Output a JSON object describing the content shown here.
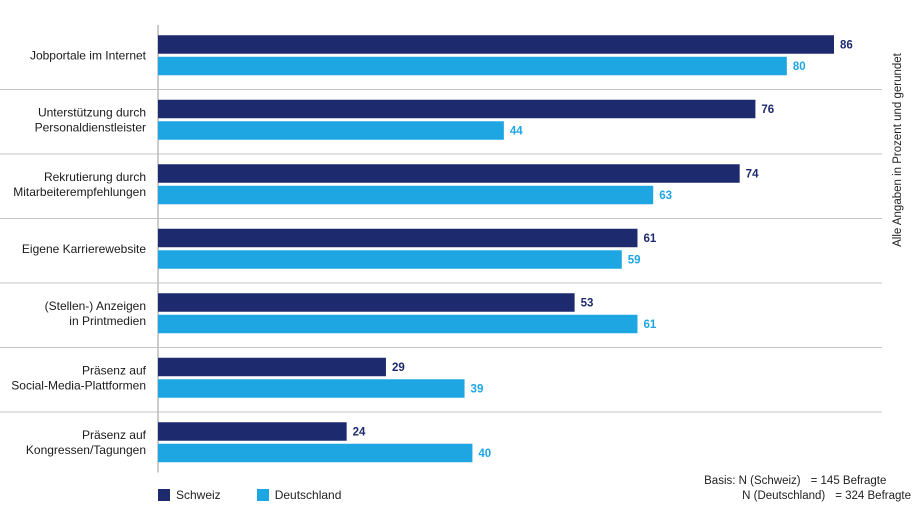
{
  "side_note": "Alle Angaben in Prozent und gerundet",
  "legend": [
    {
      "label": "Schweiz",
      "color": "#1e2a6e"
    },
    {
      "label": "Deutschland",
      "color": "#1ea6e2"
    }
  ],
  "basis": {
    "line1_prefix": "Basis: N (Schweiz)",
    "line1_value": "= 145 Befragte",
    "line2_prefix": "N (Deutschland)",
    "line2_value": "= 324 Befragte"
  },
  "chart_data": {
    "type": "bar",
    "orientation": "horizontal",
    "categories": [
      [
        "Jobportale im Internet"
      ],
      [
        "Unterstützung durch",
        "Personaldienstleister"
      ],
      [
        "Rekrutierung durch",
        "Mitarbeiterempfehlungen"
      ],
      [
        "Eigene Karrierewebsite"
      ],
      [
        "(Stellen-) Anzeigen",
        "in Printmedien"
      ],
      [
        "Präsenz auf",
        "Social-Media-Plattformen"
      ],
      [
        "Präsenz auf",
        "Kongressen/Tagungen"
      ]
    ],
    "series": [
      {
        "name": "Schweiz",
        "color": "#1e2a6e",
        "values": [
          86,
          76,
          74,
          61,
          53,
          29,
          24
        ]
      },
      {
        "name": "Deutschland",
        "color": "#1ea6e2",
        "values": [
          80,
          44,
          63,
          59,
          61,
          39,
          40
        ]
      }
    ],
    "xlim": [
      0,
      86
    ],
    "grid": false,
    "legend_position": "bottom-left",
    "data_labels": true
  }
}
